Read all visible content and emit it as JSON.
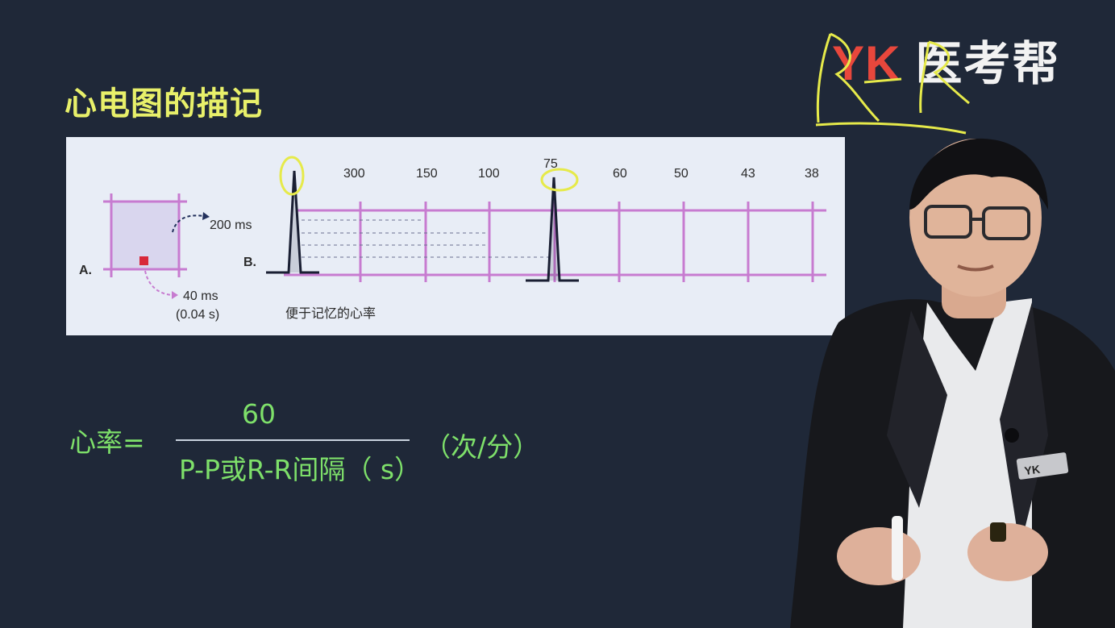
{
  "slide": {
    "title": "心电图的描记",
    "logo_latin": "YK",
    "logo_cn": "医考帮"
  },
  "figure": {
    "panel_a_label": "A.",
    "panel_b_label": "B.",
    "big_box_duration": "200 ms",
    "small_box_duration": "40 ms",
    "small_box_seconds": "(0.04 s)",
    "heart_rate_ticks": [
      "300",
      "150",
      "100",
      "75",
      "60",
      "50",
      "43",
      "38"
    ],
    "caption": "便于记忆的心率"
  },
  "formula": {
    "left_label": "心率=",
    "numerator": "60",
    "denominator": "P-P或R-R间隔（ s）",
    "unit": "（次/分）"
  },
  "badge": {
    "text": "YK"
  },
  "colors": {
    "background": "#1f2838",
    "title": "#e8f06a",
    "formula": "#7ee06a",
    "logo_red": "#e8473c",
    "grid_pink": "#c77bd0",
    "annotation_yellow": "#e6ea4a"
  }
}
